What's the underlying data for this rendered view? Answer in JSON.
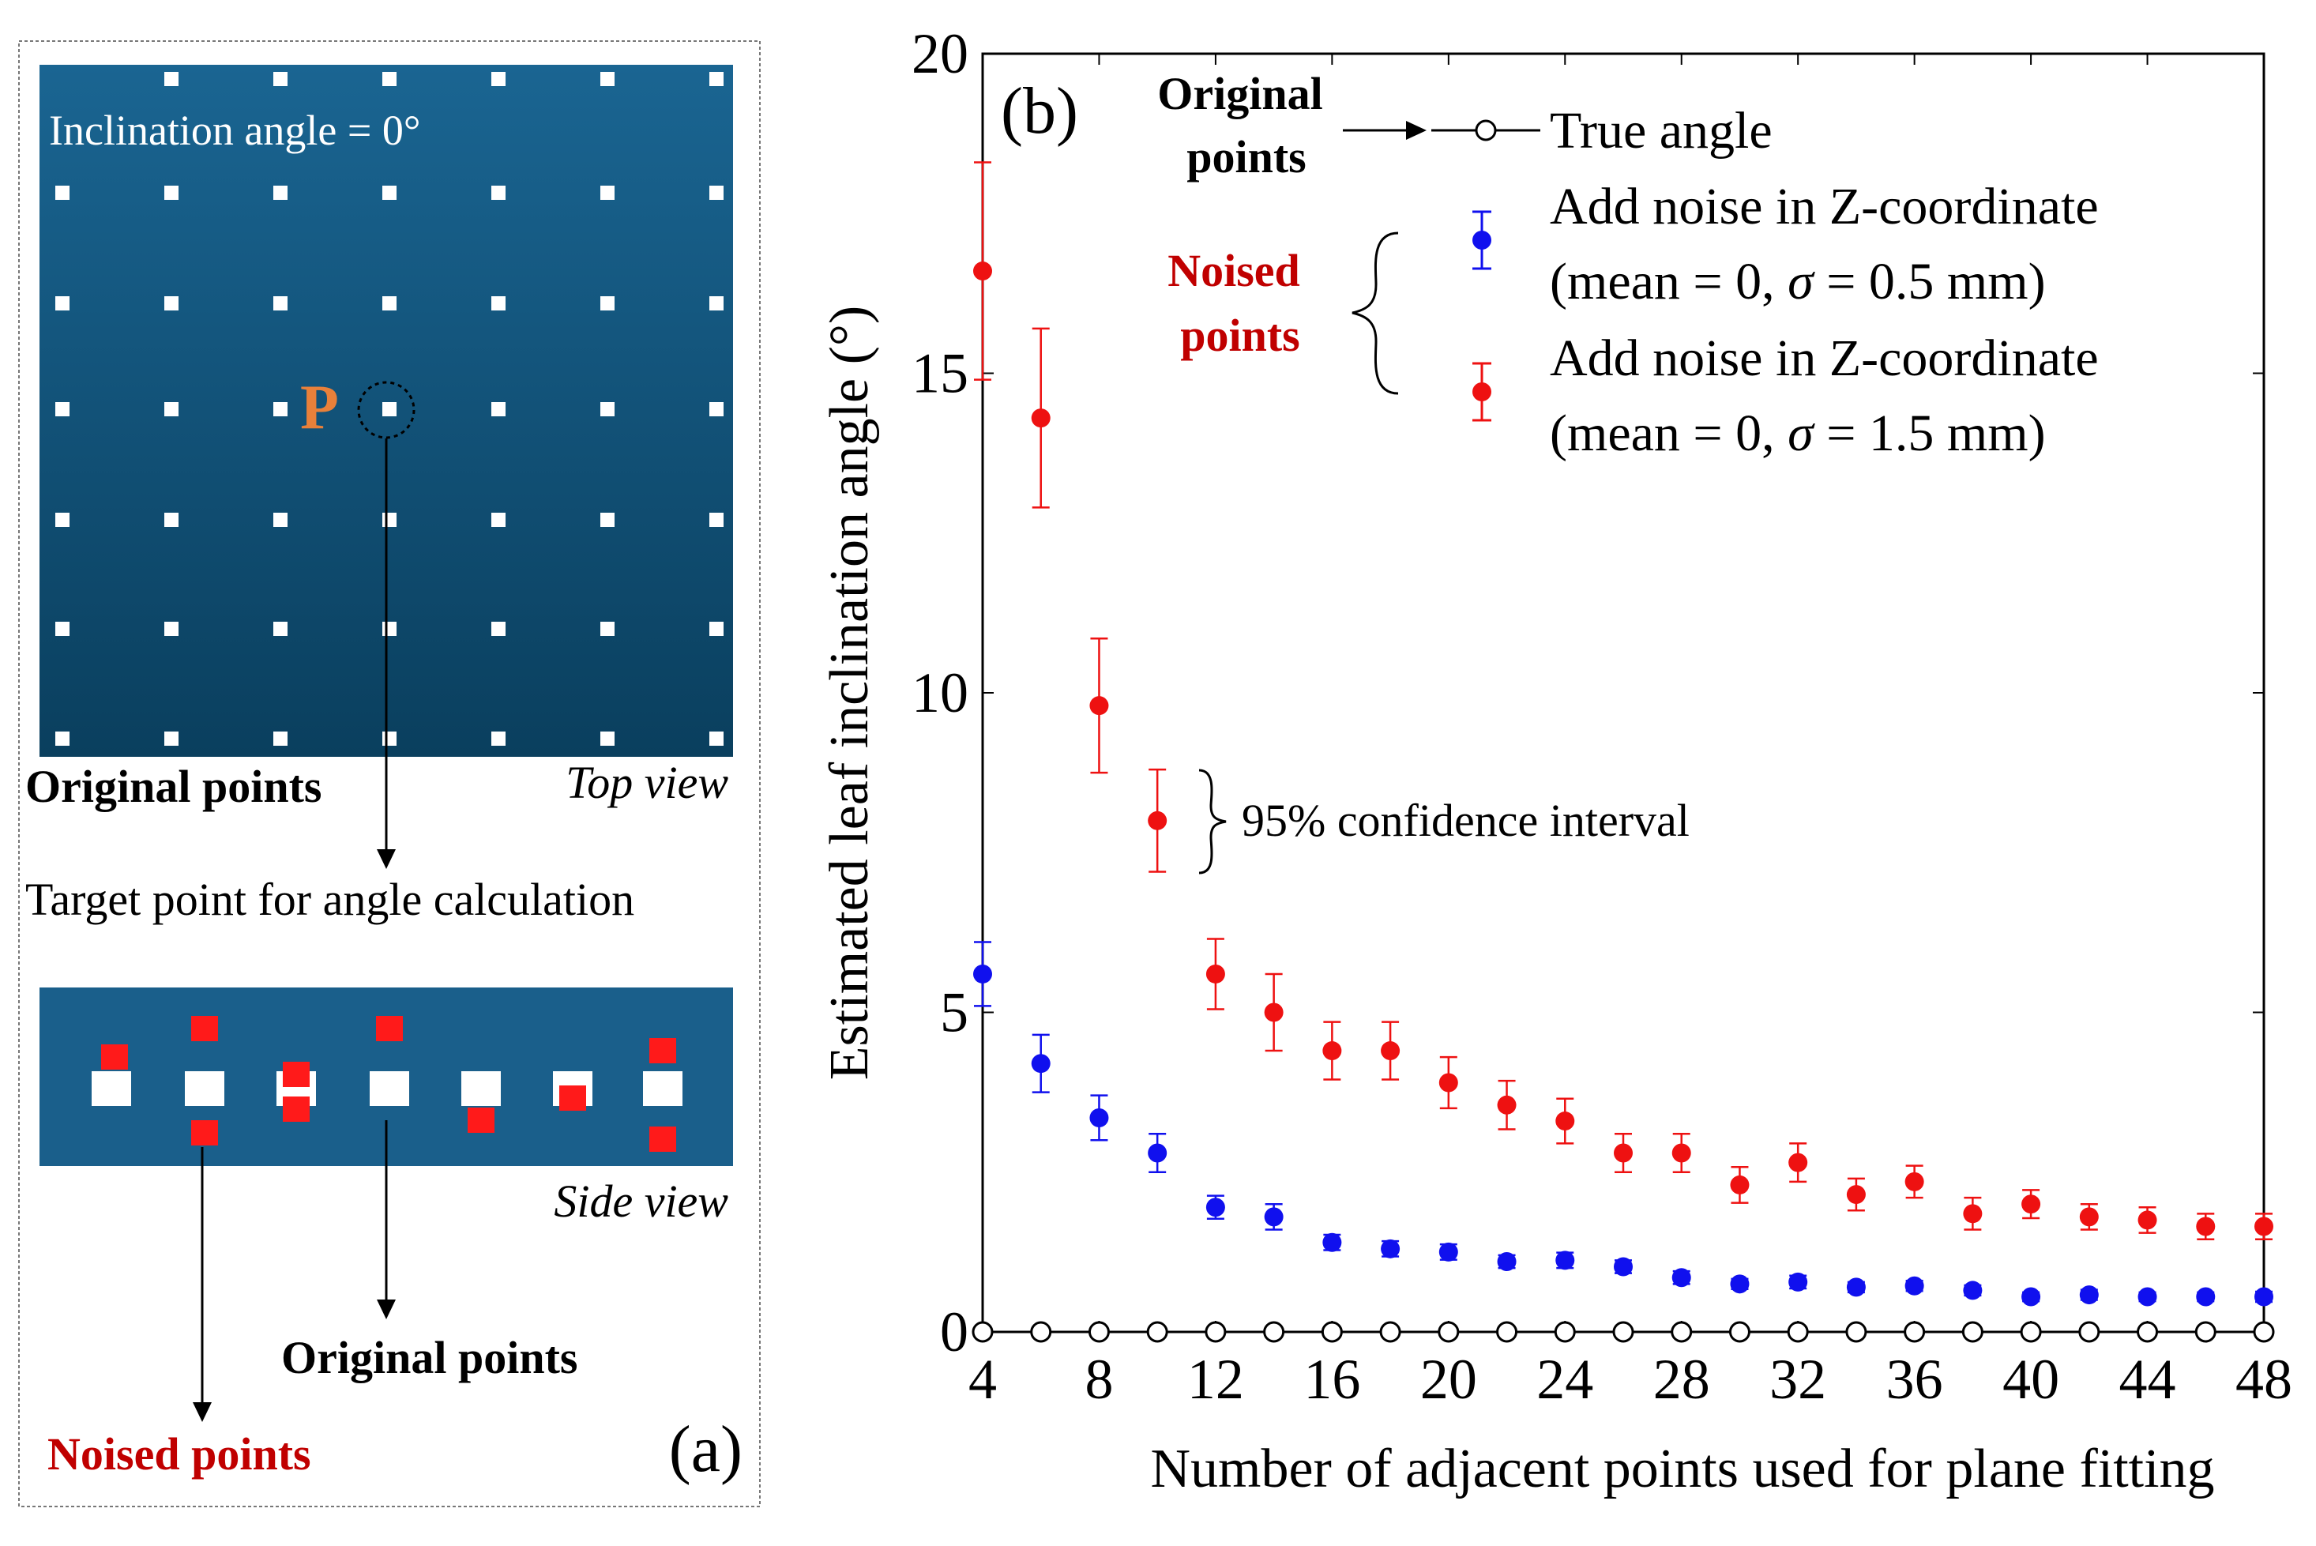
{
  "panel_a": {
    "top_view_annotation": "Inclination angle = 0°",
    "point_label": "P",
    "original_points_label": "Original points",
    "top_view_label": "Top view",
    "target_label": "Target point for angle calculation",
    "side_view_label": "Side view",
    "side_original_label": "Original points",
    "noised_label": "Noised points",
    "panel_letter": "(a)",
    "colors": {
      "panel_bg": "#0f5a84",
      "point": "#ffffff",
      "noise": "#ff1a1a",
      "p_label": "#e8803a",
      "noised_text": "#c00000"
    }
  },
  "chart_data": {
    "type": "scatter",
    "panel_letter": "(b)",
    "xlabel": "Number of adjacent points used for plane fitting",
    "ylabel": "Estimated leaf inclination angle (°)",
    "xlim": [
      4,
      48
    ],
    "ylim": [
      0,
      20
    ],
    "x_ticks": [
      4,
      8,
      12,
      16,
      20,
      24,
      28,
      32,
      36,
      40,
      44,
      48
    ],
    "y_ticks": [
      0,
      5,
      10,
      15,
      20
    ],
    "x": [
      4,
      6,
      8,
      10,
      12,
      14,
      16,
      18,
      20,
      22,
      24,
      26,
      28,
      30,
      32,
      34,
      36,
      38,
      40,
      42,
      44,
      46,
      48
    ],
    "series": [
      {
        "name": "True angle",
        "marker": "open-circle",
        "color": "#000000",
        "values": [
          0,
          0,
          0,
          0,
          0,
          0,
          0,
          0,
          0,
          0,
          0,
          0,
          0,
          0,
          0,
          0,
          0,
          0,
          0,
          0,
          0,
          0,
          0
        ]
      },
      {
        "name": "Add noise in Z-coordinate (mean = 0, σ = 0.5 mm)",
        "marker": "filled-circle",
        "color": "#1010ee",
        "values": [
          5.6,
          4.2,
          3.35,
          2.8,
          1.95,
          1.8,
          1.4,
          1.3,
          1.25,
          1.1,
          1.12,
          1.02,
          0.85,
          0.75,
          0.78,
          0.7,
          0.72,
          0.65,
          0.55,
          0.58,
          0.55,
          0.55,
          0.55
        ],
        "ci": [
          0.5,
          0.45,
          0.35,
          0.3,
          0.18,
          0.2,
          0.12,
          0.12,
          0.12,
          0.1,
          0.12,
          0.1,
          0.1,
          0.08,
          0.1,
          0.08,
          0.08,
          0.08,
          0.07,
          0.08,
          0.07,
          0.07,
          0.08
        ]
      },
      {
        "name": "Add noise in Z-coordinate (mean = 0, σ = 1.5 mm)",
        "marker": "filled-circle",
        "color": "#ee1111",
        "values": [
          16.6,
          14.3,
          9.8,
          8.0,
          5.6,
          5.0,
          4.4,
          4.4,
          3.9,
          3.55,
          3.3,
          2.8,
          2.8,
          2.3,
          2.65,
          2.15,
          2.35,
          1.85,
          2.0,
          1.8,
          1.75,
          1.65,
          1.65
        ],
        "ci": [
          1.7,
          1.4,
          1.05,
          0.8,
          0.55,
          0.6,
          0.45,
          0.45,
          0.4,
          0.38,
          0.35,
          0.3,
          0.3,
          0.28,
          0.3,
          0.25,
          0.25,
          0.25,
          0.22,
          0.2,
          0.2,
          0.2,
          0.2
        ]
      }
    ],
    "legend": {
      "original_label_line1": "Original",
      "original_label_line2": "points",
      "noised_label_line1": "Noised",
      "noised_label_line2": "points",
      "true_angle": "True angle",
      "blue_line1": "Add noise in Z-coordinate",
      "blue_line2_pre": "(mean = 0, ",
      "blue_line2_sigma": "σ",
      "blue_line2_post": " = 0.5 mm)",
      "red_line1": "Add noise in Z-coordinate",
      "red_line2_pre": "(mean = 0, ",
      "red_line2_sigma": "σ",
      "red_line2_post": " = 1.5 mm)"
    },
    "ci_annotation": "95% confidence interval"
  }
}
